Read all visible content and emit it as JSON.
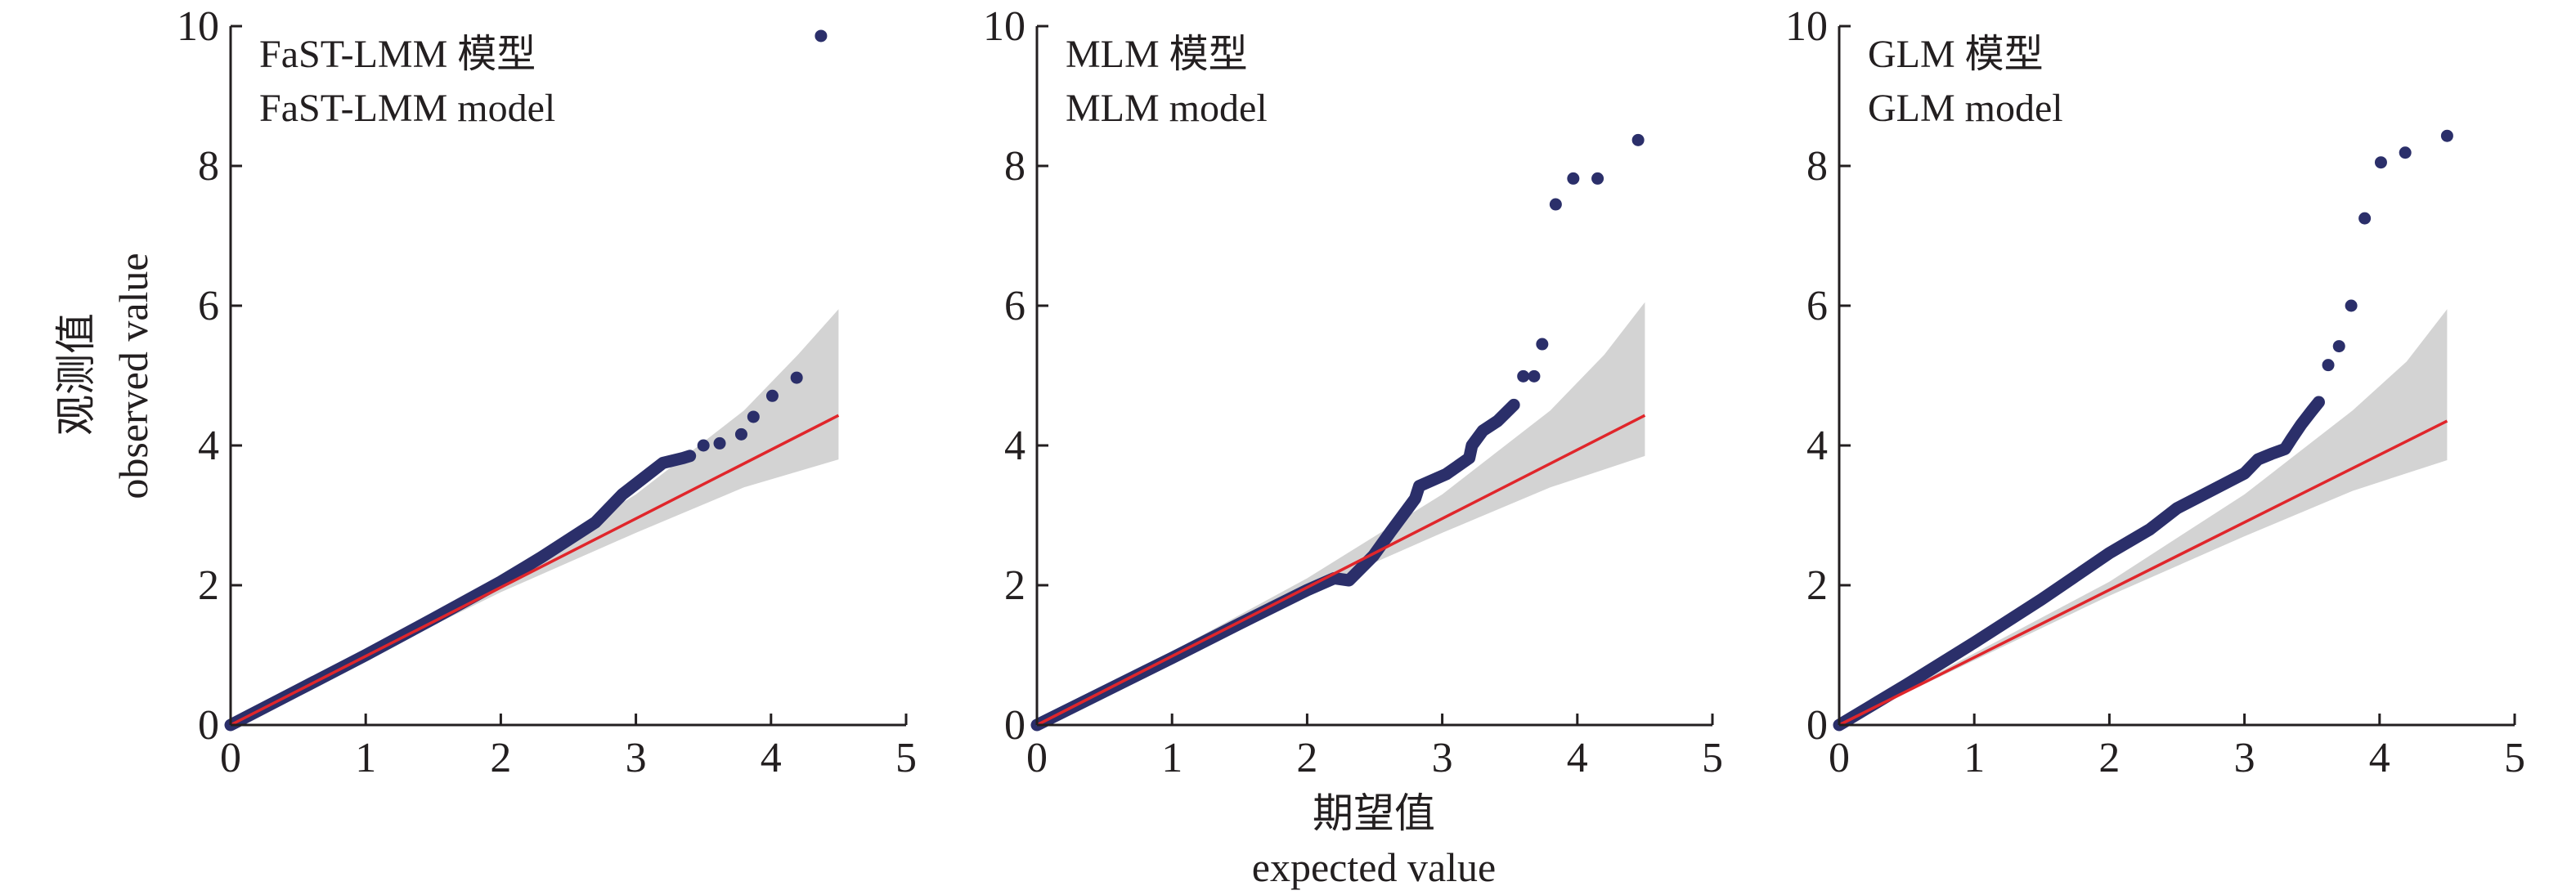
{
  "colors": {
    "points": "#2b2f6a",
    "reference_line": "#e0262b",
    "confidence_band": "#d3d3d3",
    "axis": "#231f20"
  },
  "chart_data": [
    {
      "type": "scatter",
      "title_cn": "FaST-LMM 模型",
      "title_en": "FaST-LMM model",
      "xlim": [
        0,
        5
      ],
      "ylim": [
        0,
        10
      ],
      "xticks": [
        "0",
        "1",
        "2",
        "3",
        "4",
        "5"
      ],
      "yticks": [
        "0",
        "2",
        "4",
        "6",
        "8",
        "10"
      ],
      "reference_line": {
        "x": [
          0,
          4.5
        ],
        "y": [
          0,
          4.43
        ]
      },
      "band_upper": [
        [
          0,
          0
        ],
        [
          2.0,
          2.1
        ],
        [
          3.0,
          3.3
        ],
        [
          3.8,
          4.5
        ],
        [
          4.2,
          5.3
        ],
        [
          4.5,
          5.95
        ]
      ],
      "band_lower": [
        [
          0,
          0
        ],
        [
          2.0,
          1.9
        ],
        [
          3.0,
          2.75
        ],
        [
          3.8,
          3.4
        ],
        [
          4.5,
          3.8
        ]
      ],
      "curve": [
        [
          0,
          0
        ],
        [
          0.5,
          0.5
        ],
        [
          1.0,
          1.0
        ],
        [
          1.5,
          1.52
        ],
        [
          2.0,
          2.05
        ],
        [
          2.3,
          2.4
        ],
        [
          2.5,
          2.65
        ],
        [
          2.7,
          2.9
        ],
        [
          2.9,
          3.3
        ],
        [
          3.1,
          3.6
        ],
        [
          3.2,
          3.75
        ],
        [
          3.35,
          3.82
        ],
        [
          3.4,
          3.85
        ]
      ],
      "outliers": [
        [
          3.5,
          4.0
        ],
        [
          3.62,
          4.03
        ],
        [
          3.78,
          4.16
        ],
        [
          3.87,
          4.41
        ],
        [
          4.01,
          4.71
        ],
        [
          4.19,
          4.97
        ],
        [
          4.37,
          9.86
        ]
      ]
    },
    {
      "type": "scatter",
      "title_cn": "MLM 模型",
      "title_en": "MLM model",
      "xlim": [
        0,
        5
      ],
      "ylim": [
        0,
        10
      ],
      "xticks": [
        "0",
        "1",
        "2",
        "3",
        "4",
        "5"
      ],
      "yticks": [
        "0",
        "2",
        "4",
        "6",
        "8",
        "10"
      ],
      "reference_line": {
        "x": [
          0,
          4.5
        ],
        "y": [
          0,
          4.43
        ]
      },
      "band_upper": [
        [
          0,
          0
        ],
        [
          2.0,
          2.1
        ],
        [
          3.0,
          3.3
        ],
        [
          3.8,
          4.5
        ],
        [
          4.2,
          5.3
        ],
        [
          4.5,
          6.05
        ]
      ],
      "band_lower": [
        [
          0,
          0
        ],
        [
          2.0,
          1.9
        ],
        [
          3.0,
          2.75
        ],
        [
          3.8,
          3.4
        ],
        [
          4.5,
          3.85
        ]
      ],
      "curve": [
        [
          0,
          0
        ],
        [
          0.5,
          0.48
        ],
        [
          1.0,
          0.96
        ],
        [
          1.5,
          1.45
        ],
        [
          2.0,
          1.93
        ],
        [
          2.2,
          2.1
        ],
        [
          2.31,
          2.07
        ],
        [
          2.49,
          2.42
        ],
        [
          2.62,
          2.77
        ],
        [
          2.8,
          3.24
        ],
        [
          2.83,
          3.42
        ],
        [
          3.03,
          3.59
        ],
        [
          3.2,
          3.82
        ],
        [
          3.22,
          4.0
        ],
        [
          3.3,
          4.21
        ],
        [
          3.41,
          4.35
        ],
        [
          3.53,
          4.58
        ]
      ],
      "outliers": [
        [
          3.6,
          4.99
        ],
        [
          3.68,
          4.99
        ],
        [
          3.74,
          5.45
        ],
        [
          3.84,
          7.45
        ],
        [
          3.97,
          7.82
        ],
        [
          4.15,
          7.82
        ],
        [
          4.45,
          8.37
        ]
      ]
    },
    {
      "type": "scatter",
      "title_cn": "GLM 模型",
      "title_en": "GLM model",
      "xlim": [
        0,
        5
      ],
      "ylim": [
        0,
        10
      ],
      "xticks": [
        "0",
        "1",
        "2",
        "3",
        "4",
        "5"
      ],
      "yticks": [
        "0",
        "2",
        "4",
        "6",
        "8",
        "10"
      ],
      "reference_line": {
        "x": [
          0,
          4.5
        ],
        "y": [
          0,
          4.35
        ]
      },
      "band_upper": [
        [
          0,
          0
        ],
        [
          2.0,
          2.05
        ],
        [
          3.0,
          3.3
        ],
        [
          3.8,
          4.5
        ],
        [
          4.2,
          5.2
        ],
        [
          4.5,
          5.95
        ]
      ],
      "band_lower": [
        [
          0,
          0
        ],
        [
          2.0,
          1.85
        ],
        [
          3.0,
          2.7
        ],
        [
          3.8,
          3.35
        ],
        [
          4.5,
          3.79
        ]
      ],
      "curve": [
        [
          0,
          0
        ],
        [
          0.5,
          0.58
        ],
        [
          1.0,
          1.18
        ],
        [
          1.5,
          1.8
        ],
        [
          2.0,
          2.46
        ],
        [
          2.3,
          2.8
        ],
        [
          2.5,
          3.1
        ],
        [
          2.7,
          3.3
        ],
        [
          2.9,
          3.5
        ],
        [
          3.0,
          3.6
        ],
        [
          3.1,
          3.8
        ],
        [
          3.2,
          3.88
        ],
        [
          3.3,
          3.95
        ],
        [
          3.35,
          4.1
        ],
        [
          3.42,
          4.3
        ],
        [
          3.5,
          4.5
        ],
        [
          3.55,
          4.62
        ]
      ],
      "outliers": [
        [
          3.62,
          5.15
        ],
        [
          3.7,
          5.42
        ],
        [
          3.79,
          6.0
        ],
        [
          3.89,
          7.25
        ],
        [
          4.01,
          8.05
        ],
        [
          4.19,
          8.19
        ],
        [
          4.5,
          8.43
        ]
      ]
    }
  ],
  "axes": {
    "ylabel_cn": "观测值",
    "ylabel_en": "observed value",
    "xlabel_cn": "期望值",
    "xlabel_en": "expected value"
  }
}
